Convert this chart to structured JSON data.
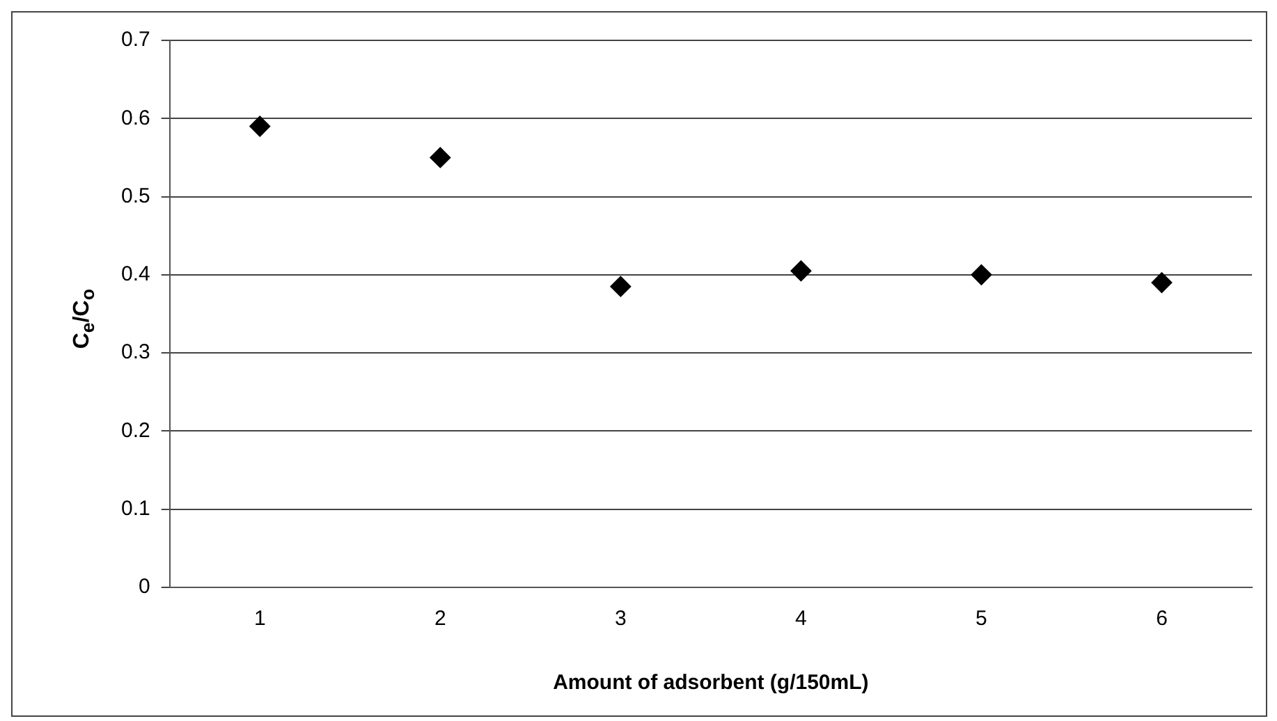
{
  "chart_data": {
    "type": "scatter",
    "xlabel": "Amount of adsorbent (g/150mL)",
    "ylabel": "C$_{e}$/C$_{o}$",
    "x": [
      1,
      2,
      3,
      4,
      5,
      6
    ],
    "series": [
      {
        "color": "#000000",
        "values": [
          0.59,
          0.55,
          0.385,
          0.405,
          0.4,
          0.39
        ]
      }
    ],
    "xlim": [
      0.5,
      6.5
    ],
    "xticks": [
      1,
      2,
      3,
      4,
      5,
      6
    ],
    "ylim": [
      0,
      0.7
    ],
    "yticks": [
      0,
      0.1,
      0.2,
      0.3,
      0.4,
      0.5,
      0.6,
      0.7
    ],
    "grid": "y",
    "marker": "diamond",
    "legend": false
  }
}
